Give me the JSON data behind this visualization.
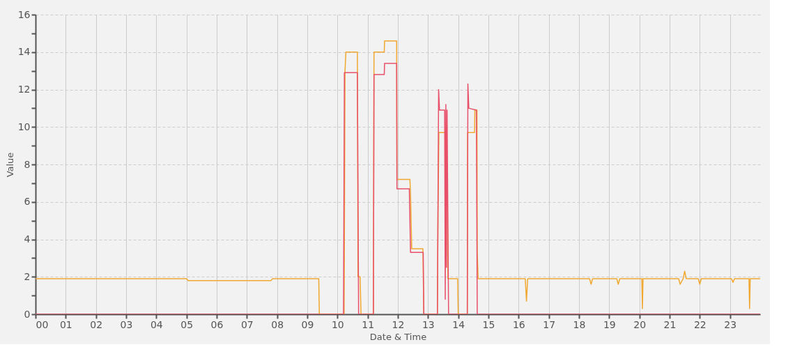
{
  "chart_data": {
    "type": "line",
    "xlabel": "Date & Time",
    "ylabel": "Value",
    "xlim": [
      0,
      24
    ],
    "ylim": [
      0,
      16
    ],
    "xticks": [
      {
        "value": 0,
        "label": "00"
      },
      {
        "value": 1,
        "label": "01"
      },
      {
        "value": 2,
        "label": "02"
      },
      {
        "value": 3,
        "label": "03"
      },
      {
        "value": 4,
        "label": "04"
      },
      {
        "value": 5,
        "label": "05"
      },
      {
        "value": 6,
        "label": "06"
      },
      {
        "value": 7,
        "label": "07"
      },
      {
        "value": 8,
        "label": "08"
      },
      {
        "value": 9,
        "label": "09"
      },
      10,
      11,
      12,
      13,
      14,
      15,
      16,
      17,
      18,
      19,
      20,
      21,
      22,
      23
    ],
    "yticks": [
      0,
      {
        "value": 1,
        "label": null
      },
      2,
      {
        "value": 3,
        "label": null
      },
      4,
      {
        "value": 5,
        "label": null
      },
      6,
      {
        "value": 7,
        "label": null
      },
      8,
      {
        "value": 9,
        "label": null
      },
      10,
      {
        "value": 11,
        "label": null
      },
      12,
      {
        "value": 13,
        "label": null
      },
      14,
      {
        "value": 15,
        "label": null
      },
      16
    ],
    "grid": true,
    "legend": false,
    "marker": "none",
    "line_style": "solid",
    "series": [
      {
        "color": "#f0a830",
        "x": [
          0,
          5.0,
          5.05,
          7.8,
          7.85,
          9.38,
          9.4,
          10.22,
          10.25,
          10.28,
          10.66,
          10.68,
          10.75,
          10.78,
          11.19,
          11.21,
          11.55,
          11.56,
          11.96,
          11.97,
          12.4,
          12.42,
          12.46,
          12.83,
          12.86,
          13.31,
          13.33,
          13.36,
          13.62,
          13.66,
          13.98,
          14.0,
          14.3,
          14.31,
          14.54,
          14.55,
          14.62,
          14.63,
          14.66,
          16.22,
          16.26,
          16.3,
          18.35,
          18.4,
          18.45,
          19.25,
          19.3,
          19.35,
          20.08,
          20.1,
          20.12,
          21.3,
          21.35,
          21.45,
          21.5,
          21.55,
          21.95,
          22.0,
          22.05,
          23.05,
          23.1,
          23.15,
          23.63,
          23.65,
          23.67,
          24
        ],
        "values": [
          1.9,
          1.9,
          1.8,
          1.8,
          1.9,
          1.9,
          0,
          0,
          13,
          14,
          14,
          2,
          2,
          0,
          0,
          14,
          14,
          14.6,
          14.6,
          7.2,
          7.2,
          6.4,
          3.5,
          3.5,
          0,
          0,
          5.5,
          9.7,
          9.7,
          1.9,
          1.9,
          0,
          0,
          9.7,
          9.7,
          10.9,
          10.9,
          3.3,
          1.9,
          1.9,
          0.7,
          1.9,
          1.9,
          1.6,
          1.9,
          1.9,
          1.6,
          1.9,
          1.9,
          0.3,
          1.9,
          1.9,
          1.6,
          1.9,
          2.3,
          1.9,
          1.9,
          1.6,
          1.9,
          1.9,
          1.7,
          1.9,
          1.9,
          0.3,
          1.9,
          1.9
        ]
      },
      {
        "color": "#e8506a",
        "x": [
          0,
          10.2,
          10.23,
          10.66,
          10.7,
          11.19,
          11.21,
          11.55,
          11.56,
          11.96,
          11.97,
          12.38,
          12.42,
          12.84,
          12.86,
          13.31,
          13.35,
          13.38,
          13.55,
          13.57,
          13.59,
          13.61,
          13.63,
          13.68,
          14.3,
          14.32,
          14.35,
          14.6,
          14.63,
          24
        ],
        "values": [
          0,
          0,
          12.9,
          12.9,
          0,
          0,
          12.8,
          12.8,
          13.4,
          13.4,
          6.7,
          6.7,
          3.3,
          3.3,
          0,
          0,
          12,
          10.9,
          10.9,
          0.8,
          11.2,
          2.5,
          10.9,
          0,
          0,
          12.3,
          11,
          10.9,
          0,
          0
        ]
      }
    ]
  }
}
